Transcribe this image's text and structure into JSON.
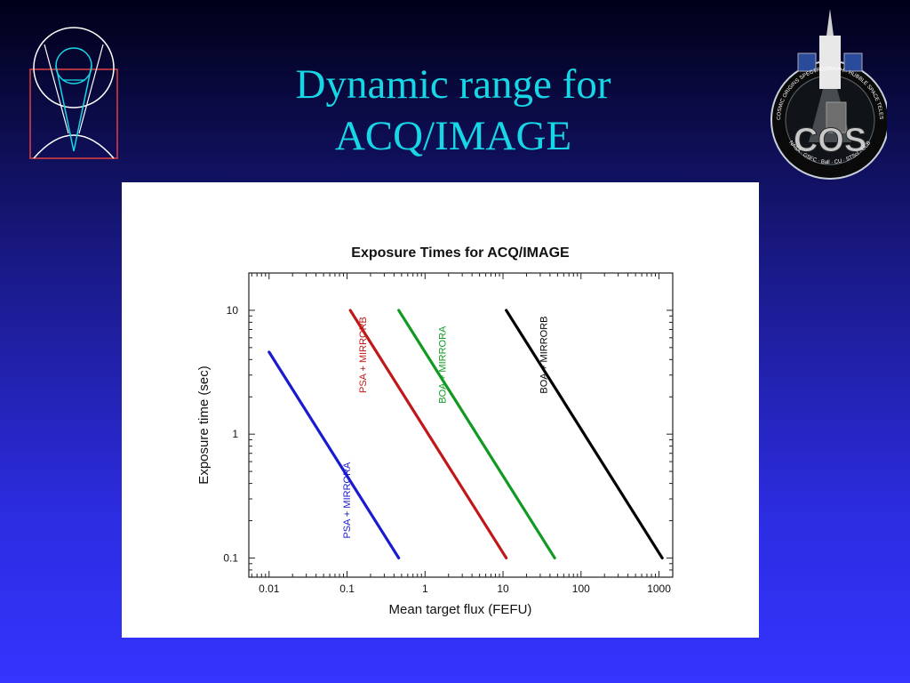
{
  "slide": {
    "title_line1": "Dynamic range for",
    "title_line2": "ACQ/IMAGE"
  },
  "logos": {
    "left": {
      "icon": "hst-telescope-outline-icon"
    },
    "right": {
      "icon": "cos-mission-patch-icon",
      "text": "COS",
      "ring_text": "Cosmic Origins Spectrograph · Hubble Space Telescope",
      "bottom_text": "NASA · GSFC · Ball · CU · STScI · UCB"
    }
  },
  "colors": {
    "title": "#17d6e6",
    "series_psa_mirrora": "#1a1ad0",
    "series_psa_mirrorb": "#c01818",
    "series_boa_mirrora": "#119a22",
    "series_boa_mirrorb": "#000000"
  },
  "chart_data": {
    "type": "line",
    "title": "Exposure Times for ACQ/IMAGE",
    "xlabel": "Mean target flux (FEFU)",
    "ylabel": "Exposure time (sec)",
    "x_scale": "log",
    "y_scale": "log",
    "xlim": [
      0.0055,
      1500
    ],
    "ylim": [
      0.07,
      20
    ],
    "x_ticks": [
      0.01,
      0.1,
      1,
      10,
      100,
      1000
    ],
    "x_tick_labels": [
      "0.01",
      "0.1",
      "1",
      "10",
      "100",
      "1000"
    ],
    "y_ticks": [
      0.1,
      1,
      10
    ],
    "y_tick_labels": [
      "0.1",
      "1",
      "10"
    ],
    "grid": false,
    "series": [
      {
        "name": "PSA + MIRRORA",
        "color": "#1a1ad0",
        "x": [
          0.01,
          0.46
        ],
        "y": [
          4.6,
          0.1
        ]
      },
      {
        "name": "PSA + MIRRORB",
        "color": "#c01818",
        "x": [
          0.11,
          11
        ],
        "y": [
          10,
          0.1
        ]
      },
      {
        "name": "BOA + MIRRORA",
        "color": "#119a22",
        "x": [
          0.46,
          46
        ],
        "y": [
          10,
          0.1
        ]
      },
      {
        "name": "BOA + MIRRORB",
        "color": "#000000",
        "x": [
          11,
          1100
        ],
        "y": [
          10,
          0.1
        ]
      }
    ]
  }
}
